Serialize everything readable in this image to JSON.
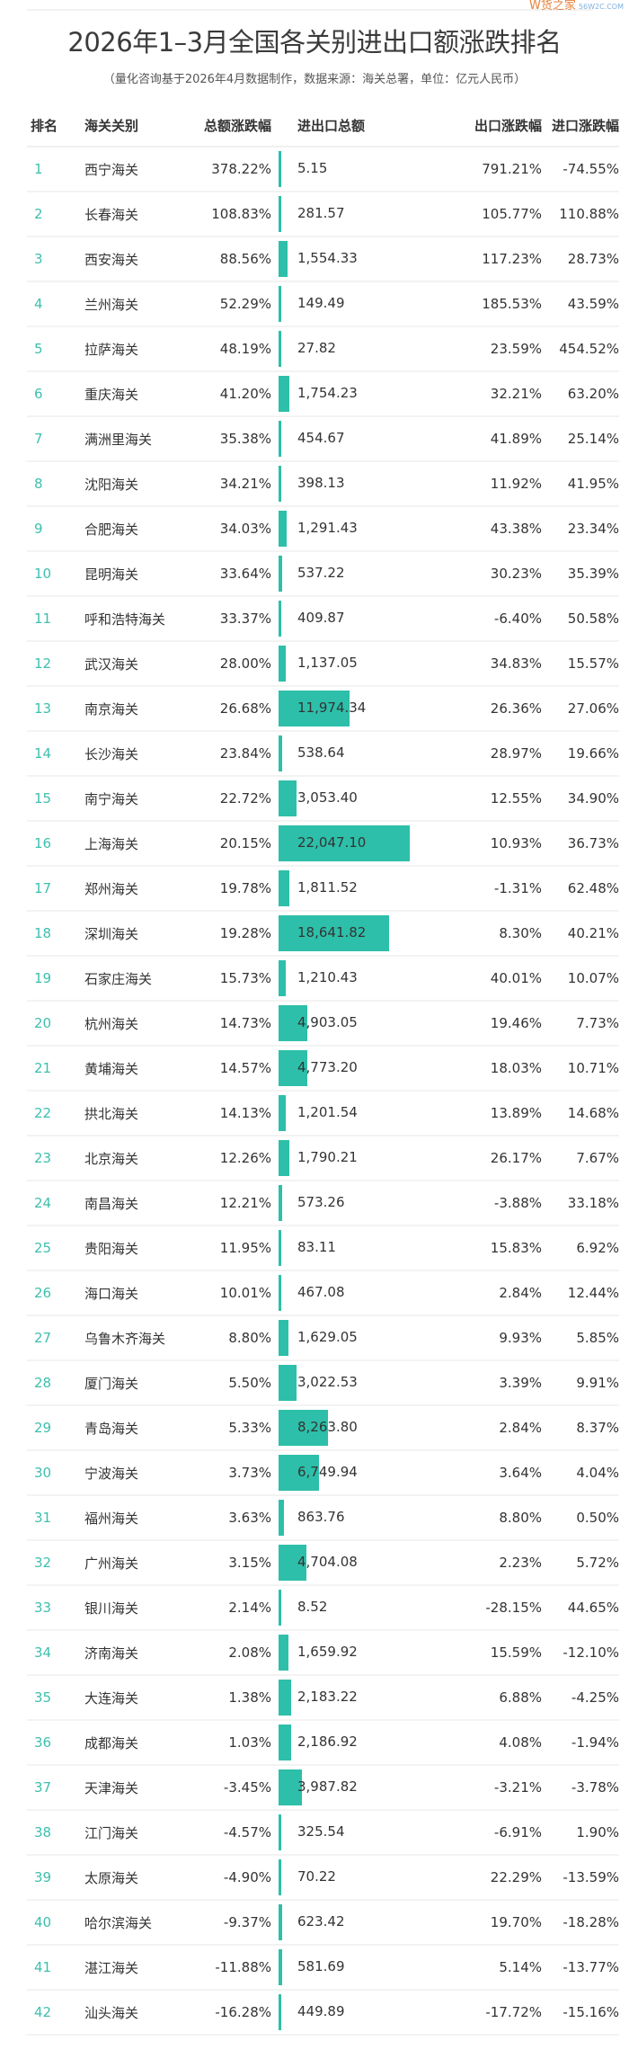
{
  "title": "2026年1–3月全国各关别进出口额涨跌排名",
  "subtitle": "（量化咨询基于2026年4月数据制作，数据来源：海关总署，单位：亿元人民币）",
  "columns": [
    "排名",
    "海关关别",
    "总额涨跌幅",
    "进出口总额",
    "出口涨跌幅",
    "进口涨跌幅"
  ],
  "accent_color": "#2dbfa9",
  "watermark": "货之家",
  "rows": [
    [
      "1",
      "西宁海关",
      "378.22%",
      "5.15",
      "791.21%",
      "-74.55%"
    ],
    [
      "2",
      "长春海关",
      "108.83%",
      "281.57",
      "105.77%",
      "110.88%"
    ],
    [
      "3",
      "西安海关",
      "88.56%",
      "1,554.33",
      "117.23%",
      "28.73%"
    ],
    [
      "4",
      "兰州海关",
      "52.29%",
      "149.49",
      "185.53%",
      "43.59%"
    ],
    [
      "5",
      "拉萨海关",
      "48.19%",
      "27.82",
      "23.59%",
      "454.52%"
    ],
    [
      "6",
      "重庆海关",
      "41.20%",
      "1,754.23",
      "32.21%",
      "63.20%"
    ],
    [
      "7",
      "满洲里海关",
      "35.38%",
      "454.67",
      "41.89%",
      "25.14%"
    ],
    [
      "8",
      "沈阳海关",
      "34.21%",
      "398.13",
      "11.92%",
      "41.95%"
    ],
    [
      "9",
      "合肥海关",
      "34.03%",
      "1,291.43",
      "43.38%",
      "23.34%"
    ],
    [
      "10",
      "昆明海关",
      "33.64%",
      "537.22",
      "30.23%",
      "35.39%"
    ],
    [
      "11",
      "呼和浩特海关",
      "33.37%",
      "409.87",
      "-6.40%",
      "50.58%"
    ],
    [
      "12",
      "武汉海关",
      "28.00%",
      "1,137.05",
      "34.83%",
      "15.57%"
    ],
    [
      "13",
      "南京海关",
      "26.68%",
      "11,974.34",
      "26.36%",
      "27.06%"
    ],
    [
      "14",
      "长沙海关",
      "23.84%",
      "538.64",
      "28.97%",
      "19.66%"
    ],
    [
      "15",
      "南宁海关",
      "22.72%",
      "3,053.40",
      "12.55%",
      "34.90%"
    ],
    [
      "16",
      "上海海关",
      "20.15%",
      "22,047.10",
      "10.93%",
      "36.73%"
    ],
    [
      "17",
      "郑州海关",
      "19.78%",
      "1,811.52",
      "-1.31%",
      "62.48%"
    ],
    [
      "18",
      "深圳海关",
      "19.28%",
      "18,641.82",
      "8.30%",
      "40.21%"
    ],
    [
      "19",
      "石家庄海关",
      "15.73%",
      "1,210.43",
      "40.01%",
      "10.07%"
    ],
    [
      "20",
      "杭州海关",
      "14.73%",
      "4,903.05",
      "19.46%",
      "7.73%"
    ],
    [
      "21",
      "黄埔海关",
      "14.57%",
      "4,773.20",
      "18.03%",
      "10.71%"
    ],
    [
      "22",
      "拱北海关",
      "14.13%",
      "1,201.54",
      "13.89%",
      "14.68%"
    ],
    [
      "23",
      "北京海关",
      "12.26%",
      "1,790.21",
      "26.17%",
      "7.67%"
    ],
    [
      "24",
      "南昌海关",
      "12.21%",
      "573.26",
      "-3.88%",
      "33.18%"
    ],
    [
      "25",
      "贵阳海关",
      "11.95%",
      "83.11",
      "15.83%",
      "6.92%"
    ],
    [
      "26",
      "海口海关",
      "10.01%",
      "467.08",
      "2.84%",
      "12.44%"
    ],
    [
      "27",
      "乌鲁木齐海关",
      "8.80%",
      "1,629.05",
      "9.93%",
      "5.85%"
    ],
    [
      "28",
      "厦门海关",
      "5.50%",
      "3,022.53",
      "3.39%",
      "9.91%"
    ],
    [
      "29",
      "青岛海关",
      "5.33%",
      "8,263.80",
      "2.84%",
      "8.37%"
    ],
    [
      "30",
      "宁波海关",
      "3.73%",
      "6,749.94",
      "3.64%",
      "4.04%"
    ],
    [
      "31",
      "福州海关",
      "3.63%",
      "863.76",
      "8.80%",
      "0.50%"
    ],
    [
      "32",
      "广州海关",
      "3.15%",
      "4,704.08",
      "2.23%",
      "5.72%"
    ],
    [
      "33",
      "银川海关",
      "2.14%",
      "8.52",
      "-28.15%",
      "44.65%"
    ],
    [
      "34",
      "济南海关",
      "2.08%",
      "1,659.92",
      "15.59%",
      "-12.10%"
    ],
    [
      "35",
      "大连海关",
      "1.38%",
      "2,183.22",
      "6.88%",
      "-4.25%"
    ],
    [
      "36",
      "成都海关",
      "1.03%",
      "2,186.92",
      "4.08%",
      "-1.94%"
    ],
    [
      "37",
      "天津海关",
      "-3.45%",
      "3,987.82",
      "-3.21%",
      "-3.78%"
    ],
    [
      "38",
      "江门海关",
      "-4.57%",
      "325.54",
      "-6.91%",
      "1.90%"
    ],
    [
      "39",
      "太原海关",
      "-4.90%",
      "70.22",
      "22.29%",
      "-13.59%"
    ],
    [
      "40",
      "哈尔滨海关",
      "-9.37%",
      "623.42",
      "19.70%",
      "-18.28%"
    ],
    [
      "41",
      "湛江海关",
      "-11.88%",
      "581.69",
      "5.14%",
      "-13.77%"
    ],
    [
      "42",
      "汕头海关",
      "-16.28%",
      "449.89",
      "-17.72%",
      "-15.16%"
    ]
  ]
}
